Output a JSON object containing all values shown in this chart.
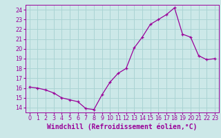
{
  "x": [
    0,
    1,
    2,
    3,
    4,
    5,
    6,
    7,
    8,
    9,
    10,
    11,
    12,
    13,
    14,
    15,
    16,
    17,
    18,
    19,
    20,
    21,
    22,
    23
  ],
  "y": [
    16.1,
    16.0,
    15.8,
    15.5,
    15.0,
    14.8,
    14.6,
    13.9,
    13.8,
    15.3,
    16.6,
    17.5,
    18.0,
    20.1,
    21.2,
    22.5,
    23.0,
    23.5,
    24.2,
    21.5,
    21.2,
    19.3,
    18.9,
    19.0
  ],
  "xlabel": "Windchill (Refroidissement éolien,°C)",
  "xlim": [
    -0.5,
    23.5
  ],
  "ylim": [
    13.5,
    24.5
  ],
  "yticks": [
    14,
    15,
    16,
    17,
    18,
    19,
    20,
    21,
    22,
    23,
    24
  ],
  "xticks": [
    0,
    1,
    2,
    3,
    4,
    5,
    6,
    7,
    8,
    9,
    10,
    11,
    12,
    13,
    14,
    15,
    16,
    17,
    18,
    19,
    20,
    21,
    22,
    23
  ],
  "line_color": "#990099",
  "bg_color": "#cce8e8",
  "grid_color": "#aad4d4",
  "tick_label_fontsize": 5.8,
  "xlabel_fontsize": 7.0
}
